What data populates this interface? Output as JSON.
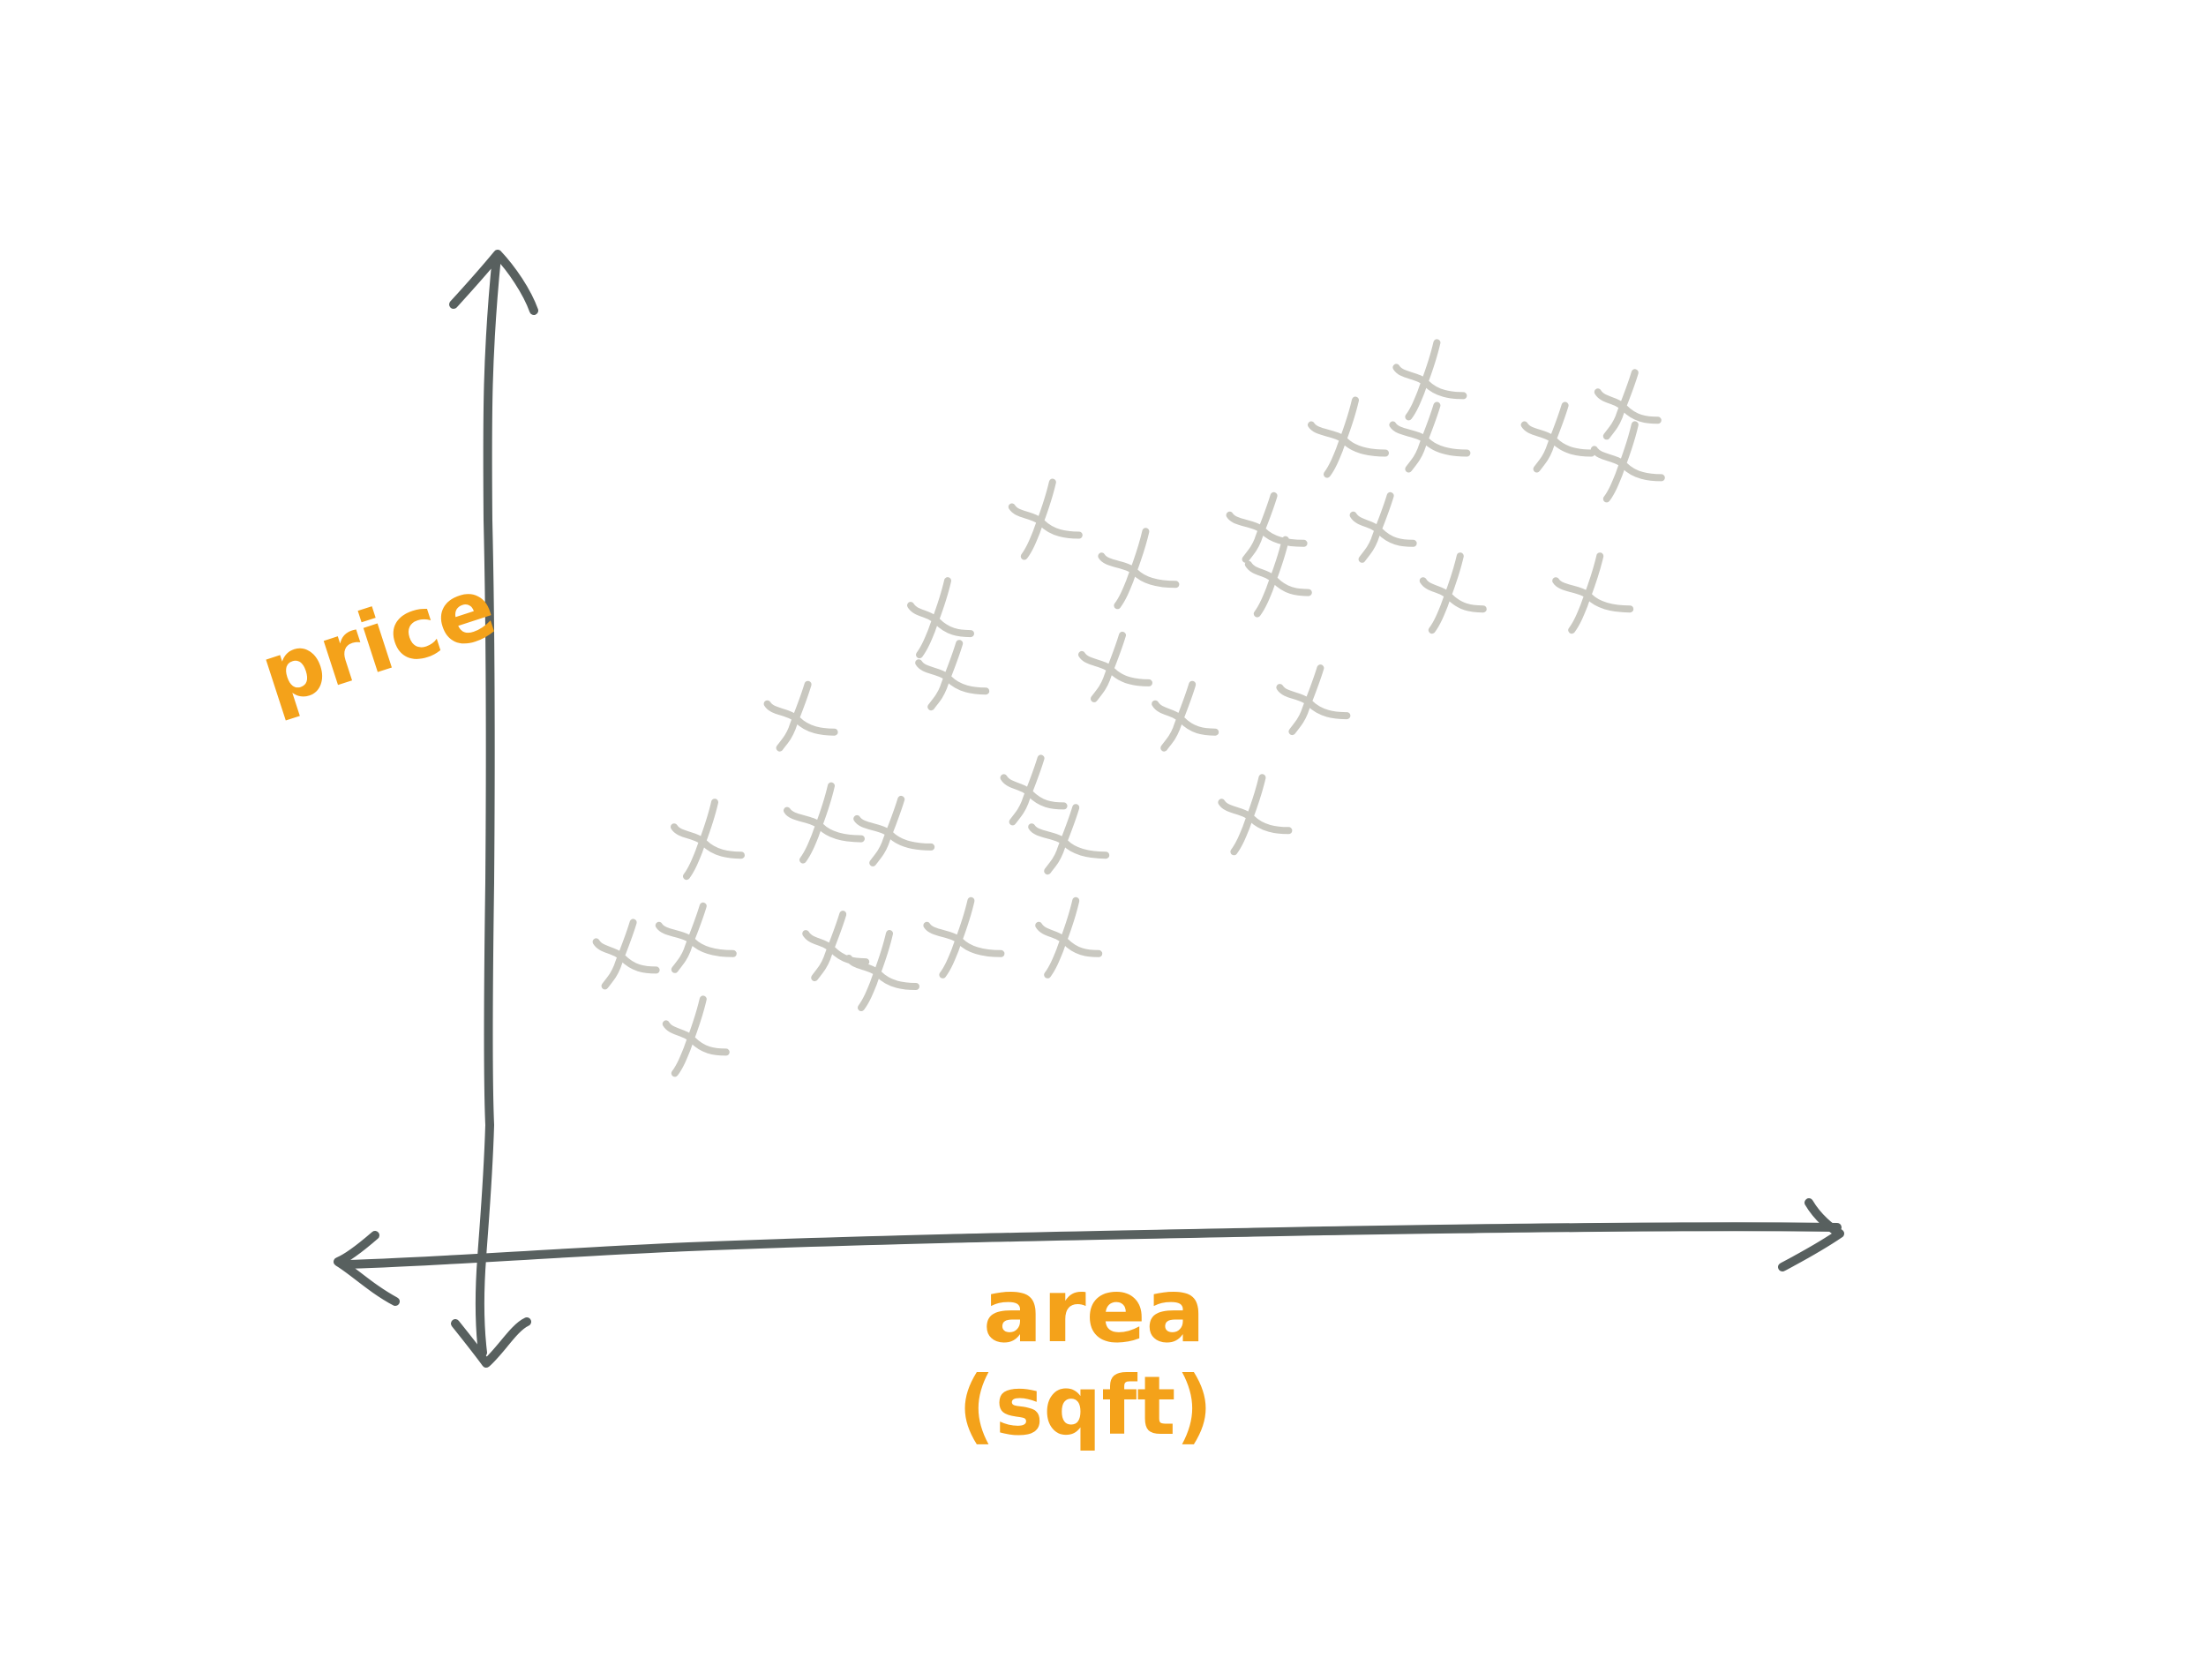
{
  "colors": {
    "axis": "#58605f",
    "points": "#c9c8c0",
    "labels": "#f4a21a",
    "background": "#ffffff"
  },
  "chart_data": {
    "type": "scatter",
    "title": "",
    "xlabel_line1": "area",
    "xlabel_line2": "(sqft)",
    "ylabel": "price",
    "grid": false,
    "legend": "none",
    "xlim": [
      0,
      100
    ],
    "ylim": [
      0,
      100
    ],
    "series": [
      {
        "marker": "x",
        "points": [
          [
            8,
            22
          ],
          [
            15,
            36
          ],
          [
            14,
            24
          ],
          [
            14,
            12
          ],
          [
            23,
            51
          ],
          [
            25,
            38
          ],
          [
            26,
            23
          ],
          [
            30,
            20
          ],
          [
            31,
            37
          ],
          [
            35,
            63
          ],
          [
            36,
            56
          ],
          [
            37,
            24
          ],
          [
            43,
            42
          ],
          [
            44,
            75
          ],
          [
            46,
            36
          ],
          [
            46,
            24
          ],
          [
            50,
            57
          ],
          [
            52,
            69
          ],
          [
            56,
            51
          ],
          [
            62,
            39
          ],
          [
            63,
            74
          ],
          [
            64,
            68
          ],
          [
            67,
            53
          ],
          [
            70,
            85
          ],
          [
            73,
            74
          ],
          [
            77,
            92
          ],
          [
            77,
            85
          ],
          [
            79,
            66
          ],
          [
            88,
            85
          ],
          [
            91,
            66
          ],
          [
            94,
            89
          ],
          [
            94,
            82
          ]
        ]
      }
    ]
  }
}
